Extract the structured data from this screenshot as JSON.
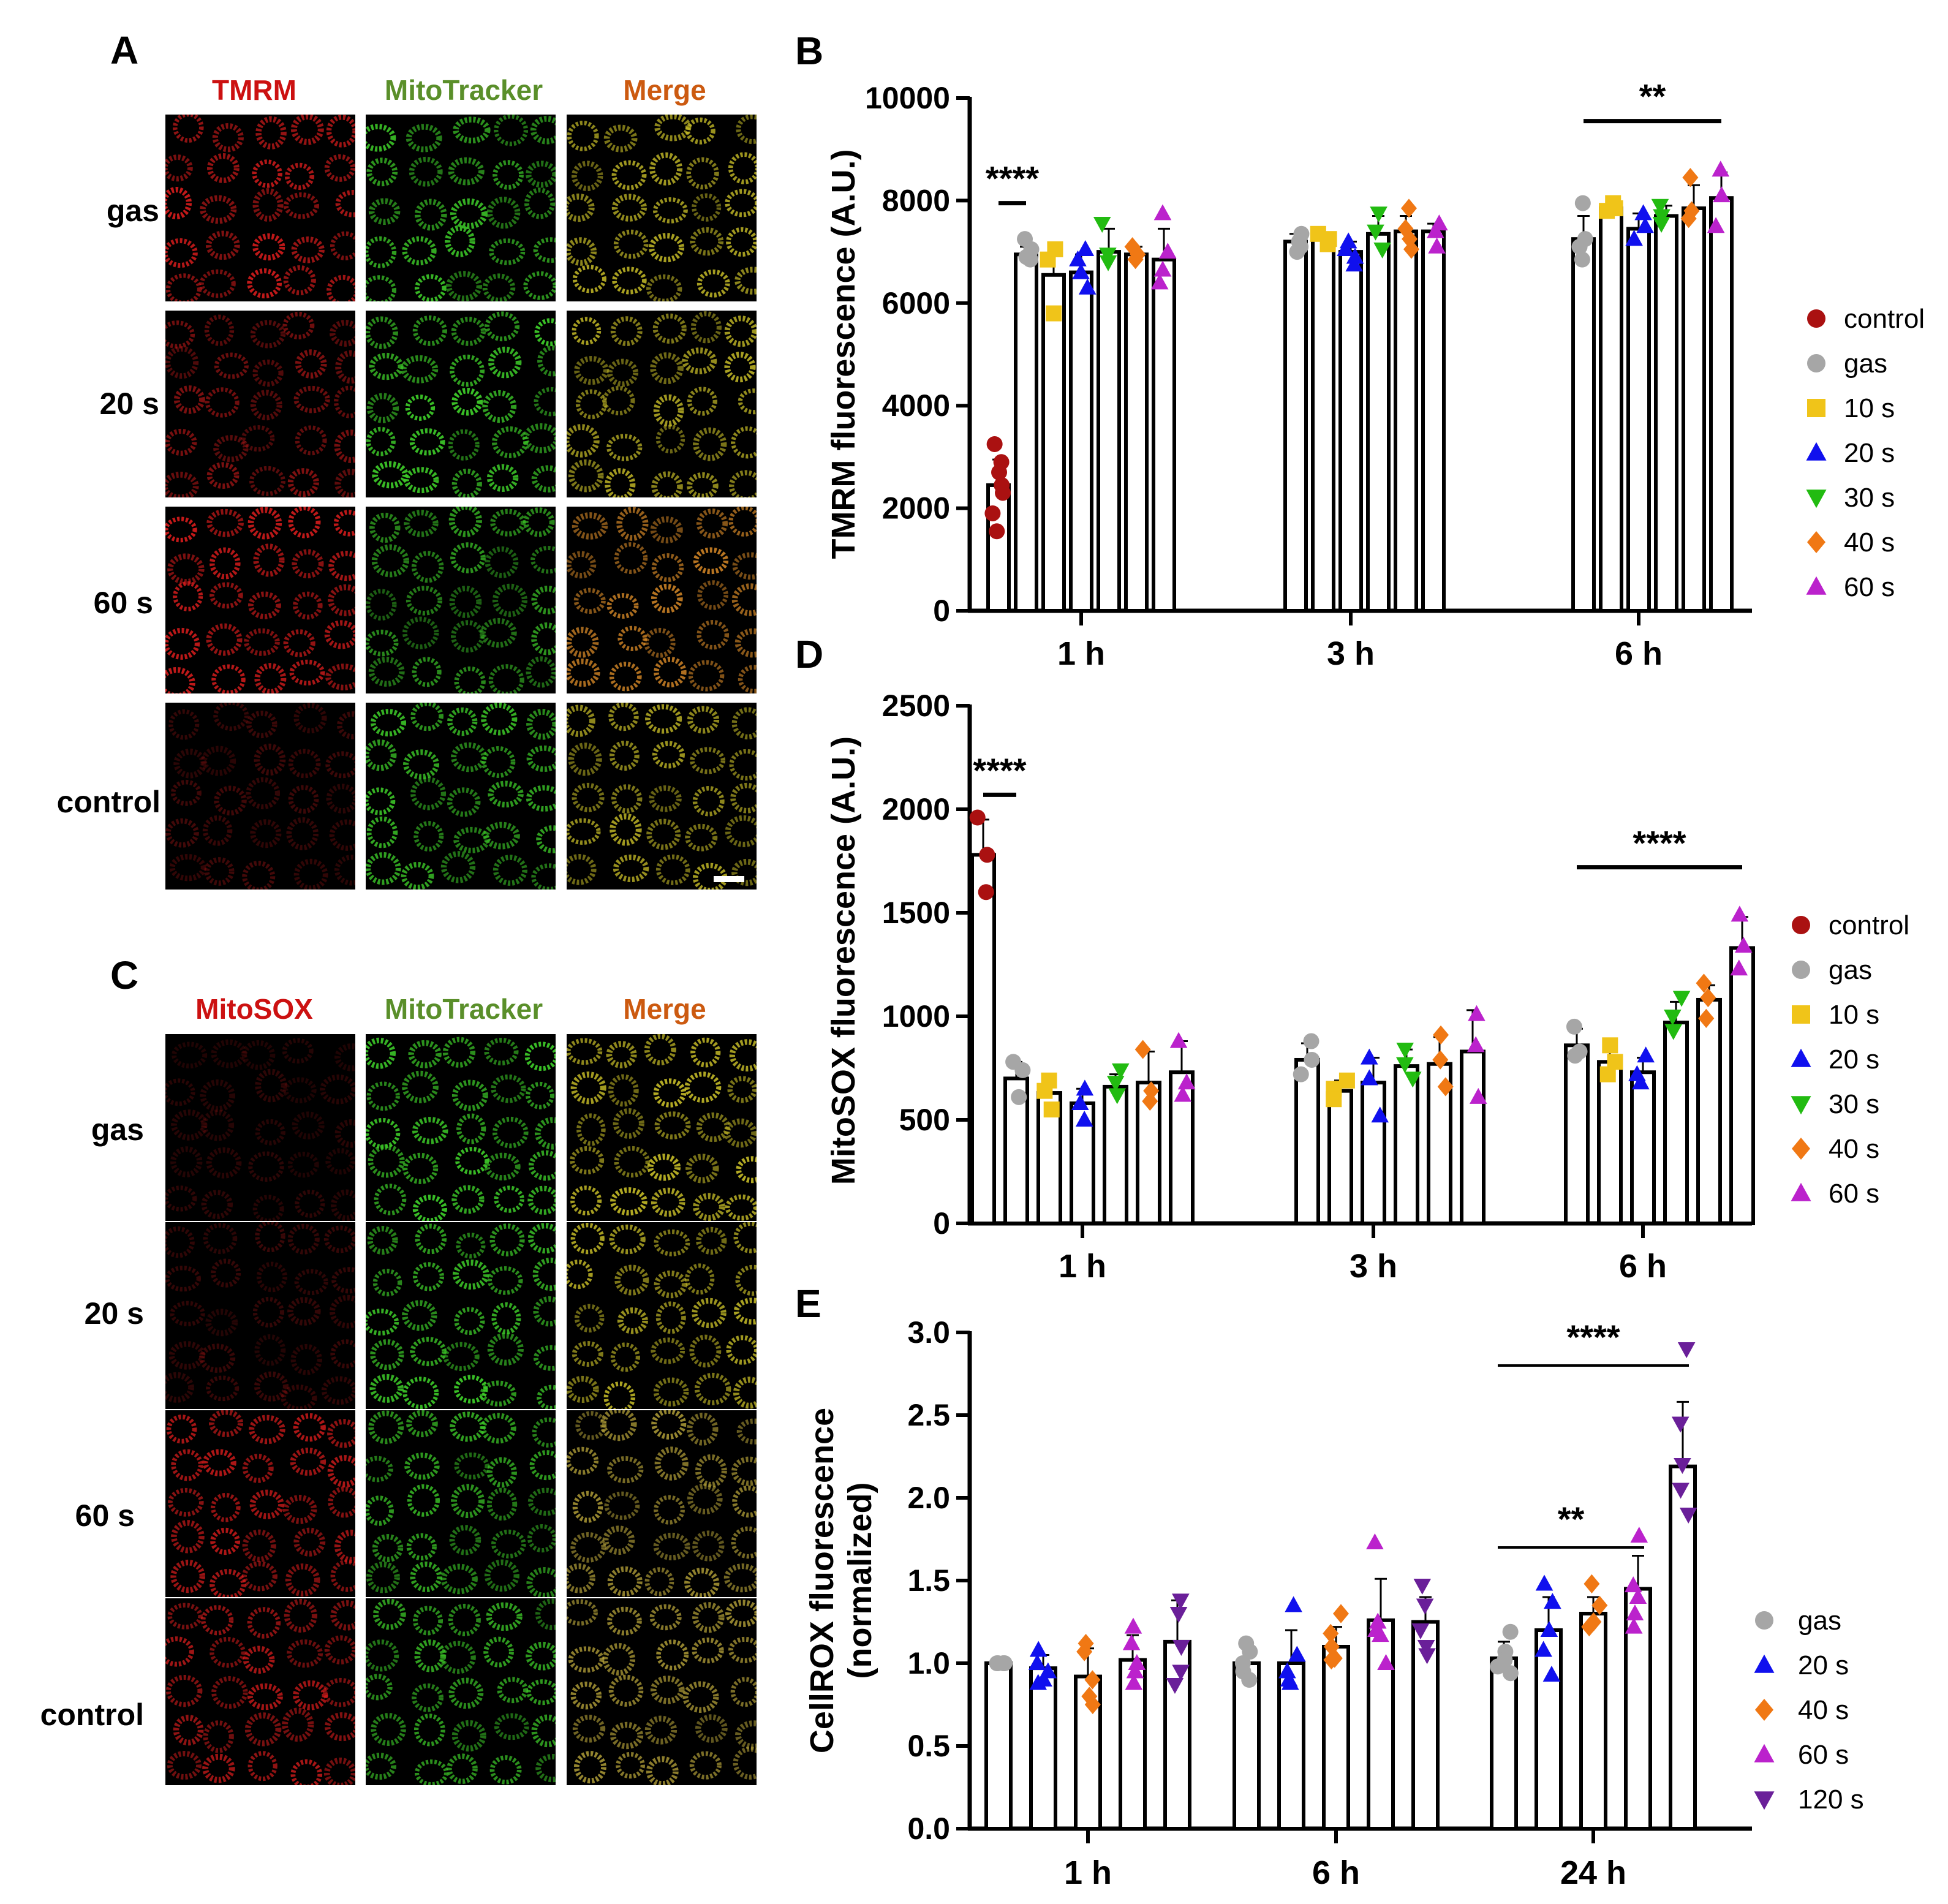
{
  "micrographs": {
    "A": {
      "letter": "A",
      "channels": [
        {
          "label": "TMRM",
          "color": "#cc1111"
        },
        {
          "label": "MitoTracker",
          "color": "#5a8f2a"
        },
        {
          "label": "Merge",
          "color": "#cc5a10"
        }
      ],
      "rows": [
        {
          "label": "gas",
          "intensity": [
            0.85,
            0.9,
            0.85
          ]
        },
        {
          "label": "20 s",
          "intensity": [
            0.55,
            0.95,
            0.85
          ]
        },
        {
          "label": "60 s",
          "intensity": [
            0.85,
            0.75,
            0.85
          ]
        },
        {
          "label": "control",
          "intensity": [
            0.3,
            0.9,
            0.85
          ]
        }
      ]
    },
    "C": {
      "letter": "C",
      "channels": [
        {
          "label": "MitoSOX",
          "color": "#cc1111"
        },
        {
          "label": "MitoTracker",
          "color": "#5a8f2a"
        },
        {
          "label": "Merge",
          "color": "#cc5a10"
        }
      ],
      "rows": [
        {
          "label": "gas",
          "intensity": [
            0.2,
            0.95,
            0.9
          ]
        },
        {
          "label": "20 s",
          "intensity": [
            0.25,
            0.95,
            0.9
          ]
        },
        {
          "label": "60 s",
          "intensity": [
            0.75,
            0.85,
            0.8
          ]
        },
        {
          "label": "control",
          "intensity": [
            0.75,
            0.8,
            0.8
          ]
        }
      ]
    }
  },
  "chart_data": [
    {
      "panel": "B",
      "type": "bar",
      "ylabel": "TMRM fluorescence (A.U.)",
      "ylim": [
        0,
        10000
      ],
      "yticks": [
        "0",
        "2000",
        "4000",
        "6000",
        "8000",
        "10000"
      ],
      "ytick_values": [
        0,
        2000,
        4000,
        6000,
        8000,
        10000
      ],
      "groups": [
        "1 h",
        "3 h",
        "6 h"
      ],
      "legend": [
        {
          "name": "control",
          "color": "#aa1111",
          "marker": "circle"
        },
        {
          "name": "gas",
          "color": "#a6a6a6",
          "marker": "circle"
        },
        {
          "name": "10 s",
          "color": "#f0c419",
          "marker": "square"
        },
        {
          "name": "20 s",
          "color": "#1010ee",
          "marker": "triangle"
        },
        {
          "name": "30 s",
          "color": "#22bb11",
          "marker": "triangle-down"
        },
        {
          "name": "40 s",
          "color": "#f07814",
          "marker": "diamond"
        },
        {
          "name": "60 s",
          "color": "#bb22cc",
          "marker": "triangle"
        }
      ],
      "bars": [
        {
          "group": 0,
          "slot": 0,
          "series": "control",
          "mean": 2450,
          "err": 500,
          "points": [
            3250,
            2900,
            2700,
            2450,
            2300,
            1900,
            1550
          ]
        },
        {
          "group": 0,
          "slot": 1,
          "series": "gas",
          "mean": 6950,
          "err": 150,
          "points": [
            7250,
            7050,
            6900,
            6850
          ]
        },
        {
          "group": 0,
          "slot": 2,
          "series": "10 s",
          "mean": 6550,
          "err": 500,
          "points": [
            7050,
            6850,
            5800
          ]
        },
        {
          "group": 0,
          "slot": 3,
          "series": "20 s",
          "mean": 6600,
          "err": 350,
          "points": [
            7050,
            6850,
            6600,
            6300
          ]
        },
        {
          "group": 0,
          "slot": 4,
          "series": "30 s",
          "mean": 7000,
          "err": 450,
          "points": [
            7550,
            6950,
            6800
          ]
        },
        {
          "group": 0,
          "slot": 5,
          "series": "40 s",
          "mean": 6950,
          "err": 150,
          "points": [
            7100,
            6950,
            6850
          ]
        },
        {
          "group": 0,
          "slot": 6,
          "series": "60 s",
          "mean": 6850,
          "err": 600,
          "points": [
            7750,
            7000,
            6650,
            6400
          ]
        },
        {
          "group": 1,
          "slot": 1,
          "series": "gas",
          "mean": 7200,
          "err": 150,
          "points": [
            7350,
            7200,
            7100,
            7000
          ]
        },
        {
          "group": 1,
          "slot": 2,
          "series": "10 s",
          "mean": 7250,
          "err": 100,
          "points": [
            7350,
            7250,
            7150
          ]
        },
        {
          "group": 1,
          "slot": 3,
          "series": "20 s",
          "mean": 7000,
          "err": 200,
          "points": [
            7200,
            7050,
            6900,
            6750
          ]
        },
        {
          "group": 1,
          "slot": 4,
          "series": "30 s",
          "mean": 7350,
          "err": 350,
          "points": [
            7750,
            7400,
            7050
          ]
        },
        {
          "group": 1,
          "slot": 5,
          "series": "40 s",
          "mean": 7400,
          "err": 300,
          "points": [
            7850,
            7450,
            7250,
            7050
          ]
        },
        {
          "group": 1,
          "slot": 6,
          "series": "60 s",
          "mean": 7400,
          "err": 150,
          "points": [
            7550,
            7400,
            7100
          ]
        },
        {
          "group": 2,
          "slot": 1,
          "series": "gas",
          "mean": 7250,
          "err": 450,
          "points": [
            7950,
            7250,
            7100,
            6850
          ]
        },
        {
          "group": 2,
          "slot": 2,
          "series": "10 s",
          "mean": 7850,
          "err": 50,
          "points": [
            7950,
            7850,
            7800
          ]
        },
        {
          "group": 2,
          "slot": 3,
          "series": "20 s",
          "mean": 7450,
          "err": 300,
          "points": [
            7750,
            7500,
            7250
          ]
        },
        {
          "group": 2,
          "slot": 4,
          "series": "30 s",
          "mean": 7700,
          "err": 200,
          "points": [
            7900,
            7700,
            7550
          ]
        },
        {
          "group": 2,
          "slot": 5,
          "series": "40 s",
          "mean": 7850,
          "err": 450,
          "points": [
            8450,
            7800,
            7650
          ]
        },
        {
          "group": 2,
          "slot": 6,
          "series": "60 s",
          "mean": 8050,
          "err": 500,
          "points": [
            8600,
            8100,
            7500
          ]
        }
      ],
      "annotations": [
        {
          "text": "****",
          "x_from": [
            0,
            0
          ],
          "x_to": [
            0,
            1
          ],
          "y": 7950,
          "text_y": 8200
        },
        {
          "text": "**",
          "x_from": [
            2,
            1
          ],
          "x_to": [
            2,
            6
          ],
          "y": 9550,
          "text_y": 9800
        }
      ]
    },
    {
      "panel": "D",
      "type": "bar",
      "ylabel": "MitoSOX fluorescence (A.U.)",
      "ylim": [
        0,
        2500
      ],
      "yticks": [
        "0",
        "500",
        "1000",
        "1500",
        "2000",
        "2500"
      ],
      "ytick_values": [
        0,
        500,
        1000,
        1500,
        2000,
        2500
      ],
      "groups": [
        "1 h",
        "3 h",
        "6 h"
      ],
      "legend": [
        {
          "name": "control",
          "color": "#aa1111",
          "marker": "circle"
        },
        {
          "name": "gas",
          "color": "#a6a6a6",
          "marker": "circle"
        },
        {
          "name": "10 s",
          "color": "#f0c419",
          "marker": "square"
        },
        {
          "name": "20 s",
          "color": "#1010ee",
          "marker": "triangle"
        },
        {
          "name": "30 s",
          "color": "#22bb11",
          "marker": "triangle-down"
        },
        {
          "name": "40 s",
          "color": "#f07814",
          "marker": "diamond"
        },
        {
          "name": "60 s",
          "color": "#bb22cc",
          "marker": "triangle"
        }
      ],
      "bars": [
        {
          "group": 0,
          "slot": 0,
          "series": "control",
          "mean": 1780,
          "err": 170,
          "points": [
            1960,
            1780,
            1600
          ]
        },
        {
          "group": 0,
          "slot": 1,
          "series": "gas",
          "mean": 700,
          "err": 80,
          "points": [
            780,
            740,
            610
          ]
        },
        {
          "group": 0,
          "slot": 2,
          "series": "10 s",
          "mean": 630,
          "err": 60,
          "points": [
            690,
            640,
            550
          ]
        },
        {
          "group": 0,
          "slot": 3,
          "series": "20 s",
          "mean": 580,
          "err": 70,
          "points": [
            650,
            580,
            500
          ]
        },
        {
          "group": 0,
          "slot": 4,
          "series": "30 s",
          "mean": 660,
          "err": 60,
          "points": [
            740,
            680,
            620
          ]
        },
        {
          "group": 0,
          "slot": 5,
          "series": "40 s",
          "mean": 680,
          "err": 150,
          "points": [
            840,
            640,
            590
          ]
        },
        {
          "group": 0,
          "slot": 6,
          "series": "60 s",
          "mean": 730,
          "err": 150,
          "points": [
            880,
            680,
            620
          ]
        },
        {
          "group": 1,
          "slot": 1,
          "series": "gas",
          "mean": 790,
          "err": 80,
          "points": [
            880,
            790,
            720
          ]
        },
        {
          "group": 1,
          "slot": 2,
          "series": "10 s",
          "mean": 640,
          "err": 50,
          "points": [
            690,
            650,
            600
          ]
        },
        {
          "group": 1,
          "slot": 3,
          "series": "20 s",
          "mean": 680,
          "err": 120,
          "points": [
            800,
            700,
            520
          ]
        },
        {
          "group": 1,
          "slot": 4,
          "series": "30 s",
          "mean": 760,
          "err": 80,
          "points": [
            840,
            770,
            700
          ]
        },
        {
          "group": 1,
          "slot": 5,
          "series": "40 s",
          "mean": 770,
          "err": 130,
          "points": [
            910,
            790,
            660
          ]
        },
        {
          "group": 1,
          "slot": 6,
          "series": "60 s",
          "mean": 830,
          "err": 200,
          "points": [
            1010,
            860,
            610
          ]
        },
        {
          "group": 2,
          "slot": 1,
          "series": "gas",
          "mean": 860,
          "err": 80,
          "points": [
            950,
            830,
            810
          ]
        },
        {
          "group": 2,
          "slot": 2,
          "series": "10 s",
          "mean": 780,
          "err": 80,
          "points": [
            860,
            780,
            720
          ]
        },
        {
          "group": 2,
          "slot": 3,
          "series": "20 s",
          "mean": 730,
          "err": 70,
          "points": [
            810,
            720,
            680
          ]
        },
        {
          "group": 2,
          "slot": 4,
          "series": "30 s",
          "mean": 970,
          "err": 100,
          "points": [
            1090,
            1000,
            930
          ]
        },
        {
          "group": 2,
          "slot": 5,
          "series": "40 s",
          "mean": 1080,
          "err": 70,
          "points": [
            1160,
            1090,
            990
          ]
        },
        {
          "group": 2,
          "slot": 6,
          "series": "60 s",
          "mean": 1330,
          "err": 150,
          "points": [
            1490,
            1340,
            1230
          ]
        }
      ],
      "annotations": [
        {
          "text": "****",
          "x_from": [
            0,
            0
          ],
          "x_to": [
            0,
            1
          ],
          "y": 2070,
          "text_y": 2130
        },
        {
          "text": "****",
          "x_from": [
            2,
            1
          ],
          "x_to": [
            2,
            6
          ],
          "y": 1720,
          "text_y": 1780
        }
      ]
    },
    {
      "panel": "E",
      "type": "bar",
      "ylabel": "CellROX fluorescence (normalized)",
      "ylabel_lines": [
        "CellROX fluorescence",
        "(normalized)"
      ],
      "ylim": [
        0,
        3.0
      ],
      "yticks": [
        "0.0",
        "0.5",
        "1.0",
        "1.5",
        "2.0",
        "2.5",
        "3.0"
      ],
      "ytick_values": [
        0,
        0.5,
        1.0,
        1.5,
        2.0,
        2.5,
        3.0
      ],
      "groups": [
        "1 h",
        "6 h",
        "24 h"
      ],
      "legend": [
        {
          "name": "gas",
          "color": "#a6a6a6",
          "marker": "circle"
        },
        {
          "name": "20 s",
          "color": "#1010ee",
          "marker": "triangle"
        },
        {
          "name": "40 s",
          "color": "#f07814",
          "marker": "diamond"
        },
        {
          "name": "60 s",
          "color": "#bb22cc",
          "marker": "triangle"
        },
        {
          "name": "120 s",
          "color": "#6a1f99",
          "marker": "triangle-down"
        }
      ],
      "bars": [
        {
          "group": 0,
          "slot": 0,
          "series": "gas",
          "mean": 1.0,
          "err": 0.0,
          "points": [
            1.0,
            1.0,
            1.0,
            1.0,
            1.0
          ]
        },
        {
          "group": 0,
          "slot": 1,
          "series": "20 s",
          "mean": 0.97,
          "err": 0.08,
          "points": [
            1.08,
            1.0,
            0.95,
            0.9,
            0.88
          ]
        },
        {
          "group": 0,
          "slot": 2,
          "series": "40 s",
          "mean": 0.92,
          "err": 0.17,
          "points": [
            1.12,
            1.07,
            0.9,
            0.8,
            0.75
          ]
        },
        {
          "group": 0,
          "slot": 3,
          "series": "60 s",
          "mean": 1.02,
          "err": 0.15,
          "points": [
            1.22,
            1.12,
            1.0,
            0.95,
            0.88
          ]
        },
        {
          "group": 0,
          "slot": 4,
          "series": "120 s",
          "mean": 1.13,
          "err": 0.25,
          "points": [
            1.38,
            1.3,
            1.1,
            0.95,
            0.87
          ]
        },
        {
          "group": 1,
          "slot": 0,
          "series": "gas",
          "mean": 1.0,
          "err": 0.1,
          "points": [
            1.12,
            1.07,
            1.0,
            0.95,
            0.9
          ]
        },
        {
          "group": 1,
          "slot": 1,
          "series": "20 s",
          "mean": 1.0,
          "err": 0.2,
          "points": [
            1.35,
            1.05,
            0.95,
            0.9,
            0.88
          ]
        },
        {
          "group": 1,
          "slot": 2,
          "series": "40 s",
          "mean": 1.1,
          "err": 0.12,
          "points": [
            1.3,
            1.18,
            1.1,
            1.03,
            1.02
          ]
        },
        {
          "group": 1,
          "slot": 3,
          "series": "60 s",
          "mean": 1.26,
          "err": 0.25,
          "points": [
            1.73,
            1.25,
            1.2,
            1.17,
            1.0
          ]
        },
        {
          "group": 1,
          "slot": 4,
          "series": "120 s",
          "mean": 1.25,
          "err": 0.15,
          "points": [
            1.47,
            1.35,
            1.2,
            1.1,
            1.05
          ]
        },
        {
          "group": 2,
          "slot": 0,
          "series": "gas",
          "mean": 1.03,
          "err": 0.1,
          "points": [
            1.19,
            1.07,
            1.02,
            0.98,
            0.94
          ]
        },
        {
          "group": 2,
          "slot": 1,
          "series": "20 s",
          "mean": 1.2,
          "err": 0.2,
          "points": [
            1.48,
            1.37,
            1.2,
            1.08,
            0.93
          ]
        },
        {
          "group": 2,
          "slot": 2,
          "series": "40 s",
          "mean": 1.3,
          "err": 0.1,
          "points": [
            1.48,
            1.35,
            1.25,
            1.22
          ]
        },
        {
          "group": 2,
          "slot": 3,
          "series": "60 s",
          "mean": 1.45,
          "err": 0.2,
          "points": [
            1.77,
            1.47,
            1.4,
            1.3,
            1.22
          ]
        },
        {
          "group": 2,
          "slot": 4,
          "series": "120 s",
          "mean": 2.19,
          "err": 0.39,
          "points": [
            2.9,
            2.45,
            2.2,
            2.05,
            1.9
          ]
        }
      ],
      "annotations": [
        {
          "text": "****",
          "x_from": [
            2,
            0
          ],
          "x_to": [
            2,
            4
          ],
          "y": 2.8,
          "text_y": 2.9,
          "thin": true
        },
        {
          "text": "**",
          "x_from": [
            2,
            0
          ],
          "x_to": [
            2,
            3
          ],
          "y": 1.7,
          "text_y": 1.8,
          "thin": true
        }
      ]
    }
  ]
}
